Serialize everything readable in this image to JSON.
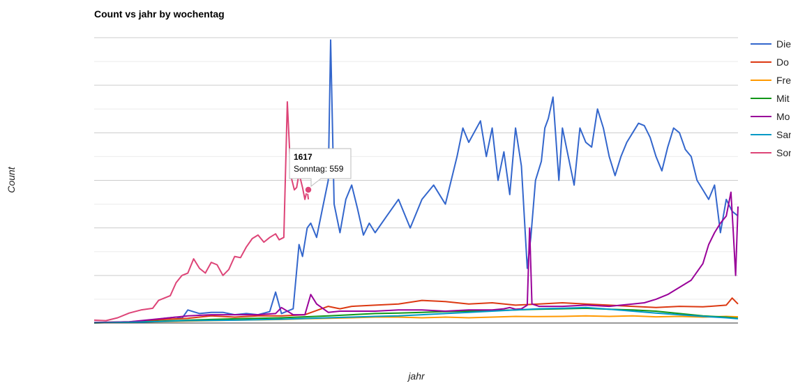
{
  "chart_data": {
    "type": "line",
    "title": "Count vs jahr by wochentag",
    "xlabel": "jahr",
    "ylabel": "Count",
    "ylim": [
      0,
      1200
    ],
    "grid": true,
    "legend_position": "right",
    "tooltip": {
      "x": "1617",
      "series": "Sonntag",
      "value": 559
    },
    "series": [
      {
        "name": "Die",
        "color": "#3366cc",
        "points": [
          [
            0,
            2
          ],
          [
            20,
            3
          ],
          [
            40,
            6
          ],
          [
            60,
            20
          ],
          [
            70,
            25
          ],
          [
            75,
            20
          ],
          [
            80,
            55
          ],
          [
            90,
            40
          ],
          [
            100,
            45
          ],
          [
            110,
            45
          ],
          [
            120,
            35
          ],
          [
            130,
            40
          ],
          [
            140,
            35
          ],
          [
            150,
            48
          ],
          [
            155,
            130
          ],
          [
            160,
            40
          ],
          [
            170,
            60
          ],
          [
            175,
            330
          ],
          [
            178,
            280
          ],
          [
            182,
            400
          ],
          [
            185,
            420
          ],
          [
            190,
            360
          ],
          [
            195,
            480
          ],
          [
            200,
            600
          ],
          [
            202,
            1190
          ],
          [
            205,
            500
          ],
          [
            210,
            380
          ],
          [
            215,
            520
          ],
          [
            220,
            580
          ],
          [
            225,
            480
          ],
          [
            230,
            370
          ],
          [
            235,
            420
          ],
          [
            240,
            380
          ],
          [
            250,
            450
          ],
          [
            260,
            520
          ],
          [
            270,
            400
          ],
          [
            280,
            520
          ],
          [
            290,
            580
          ],
          [
            300,
            500
          ],
          [
            310,
            700
          ],
          [
            315,
            820
          ],
          [
            320,
            760
          ],
          [
            330,
            850
          ],
          [
            335,
            700
          ],
          [
            340,
            820
          ],
          [
            345,
            600
          ],
          [
            350,
            720
          ],
          [
            355,
            540
          ],
          [
            360,
            820
          ],
          [
            365,
            660
          ],
          [
            370,
            230
          ],
          [
            373,
            360
          ],
          [
            377,
            600
          ],
          [
            382,
            680
          ],
          [
            385,
            820
          ],
          [
            388,
            860
          ],
          [
            392,
            950
          ],
          [
            397,
            600
          ],
          [
            400,
            820
          ],
          [
            405,
            700
          ],
          [
            410,
            580
          ],
          [
            415,
            820
          ],
          [
            420,
            760
          ],
          [
            425,
            740
          ],
          [
            430,
            900
          ],
          [
            435,
            820
          ],
          [
            440,
            700
          ],
          [
            445,
            620
          ],
          [
            450,
            700
          ],
          [
            455,
            760
          ],
          [
            460,
            800
          ],
          [
            465,
            840
          ],
          [
            470,
            830
          ],
          [
            475,
            780
          ],
          [
            480,
            700
          ],
          [
            485,
            640
          ],
          [
            490,
            740
          ],
          [
            495,
            820
          ],
          [
            500,
            800
          ],
          [
            505,
            730
          ],
          [
            510,
            700
          ],
          [
            515,
            600
          ],
          [
            520,
            560
          ],
          [
            525,
            520
          ],
          [
            530,
            580
          ],
          [
            535,
            380
          ],
          [
            540,
            520
          ],
          [
            545,
            470
          ],
          [
            550,
            450
          ]
        ]
      },
      {
        "name": "Do",
        "color": "#dc3912",
        "points": [
          [
            0,
            2
          ],
          [
            30,
            5
          ],
          [
            60,
            15
          ],
          [
            80,
            20
          ],
          [
            100,
            30
          ],
          [
            120,
            25
          ],
          [
            140,
            30
          ],
          [
            160,
            30
          ],
          [
            180,
            35
          ],
          [
            200,
            70
          ],
          [
            210,
            60
          ],
          [
            220,
            70
          ],
          [
            240,
            75
          ],
          [
            260,
            80
          ],
          [
            280,
            95
          ],
          [
            300,
            90
          ],
          [
            320,
            80
          ],
          [
            340,
            85
          ],
          [
            360,
            75
          ],
          [
            380,
            80
          ],
          [
            400,
            85
          ],
          [
            420,
            80
          ],
          [
            440,
            75
          ],
          [
            460,
            70
          ],
          [
            480,
            65
          ],
          [
            500,
            70
          ],
          [
            520,
            68
          ],
          [
            540,
            75
          ],
          [
            545,
            105
          ],
          [
            550,
            80
          ]
        ]
      },
      {
        "name": "Fre",
        "color": "#ff9900",
        "points": [
          [
            0,
            1
          ],
          [
            40,
            4
          ],
          [
            80,
            8
          ],
          [
            120,
            12
          ],
          [
            160,
            15
          ],
          [
            180,
            18
          ],
          [
            200,
            20
          ],
          [
            220,
            22
          ],
          [
            240,
            25
          ],
          [
            260,
            25
          ],
          [
            280,
            22
          ],
          [
            300,
            25
          ],
          [
            320,
            22
          ],
          [
            340,
            25
          ],
          [
            360,
            28
          ],
          [
            380,
            27
          ],
          [
            400,
            28
          ],
          [
            420,
            30
          ],
          [
            440,
            28
          ],
          [
            460,
            30
          ],
          [
            480,
            26
          ],
          [
            500,
            28
          ],
          [
            520,
            25
          ],
          [
            540,
            28
          ],
          [
            550,
            26
          ]
        ]
      },
      {
        "name": "Mit",
        "color": "#109618",
        "points": [
          [
            0,
            1
          ],
          [
            40,
            5
          ],
          [
            80,
            12
          ],
          [
            120,
            18
          ],
          [
            160,
            22
          ],
          [
            200,
            30
          ],
          [
            220,
            35
          ],
          [
            240,
            40
          ],
          [
            260,
            42
          ],
          [
            280,
            45
          ],
          [
            300,
            48
          ],
          [
            320,
            50
          ],
          [
            340,
            52
          ],
          [
            360,
            55
          ],
          [
            380,
            58
          ],
          [
            400,
            60
          ],
          [
            420,
            62
          ],
          [
            440,
            58
          ],
          [
            460,
            55
          ],
          [
            480,
            50
          ],
          [
            500,
            40
          ],
          [
            520,
            30
          ],
          [
            540,
            25
          ],
          [
            550,
            20
          ]
        ]
      },
      {
        "name": "Mo",
        "color": "#990099",
        "points": [
          [
            0,
            2
          ],
          [
            30,
            5
          ],
          [
            60,
            20
          ],
          [
            80,
            30
          ],
          [
            100,
            35
          ],
          [
            120,
            35
          ],
          [
            140,
            35
          ],
          [
            155,
            40
          ],
          [
            160,
            65
          ],
          [
            170,
            35
          ],
          [
            180,
            35
          ],
          [
            185,
            120
          ],
          [
            190,
            80
          ],
          [
            200,
            45
          ],
          [
            210,
            50
          ],
          [
            220,
            50
          ],
          [
            240,
            50
          ],
          [
            260,
            55
          ],
          [
            280,
            55
          ],
          [
            300,
            50
          ],
          [
            320,
            55
          ],
          [
            340,
            55
          ],
          [
            350,
            60
          ],
          [
            355,
            65
          ],
          [
            360,
            58
          ],
          [
            365,
            60
          ],
          [
            370,
            75
          ],
          [
            372,
            400
          ],
          [
            374,
            80
          ],
          [
            380,
            70
          ],
          [
            400,
            70
          ],
          [
            420,
            75
          ],
          [
            440,
            70
          ],
          [
            460,
            80
          ],
          [
            470,
            85
          ],
          [
            480,
            100
          ],
          [
            490,
            120
          ],
          [
            500,
            150
          ],
          [
            510,
            180
          ],
          [
            520,
            250
          ],
          [
            525,
            330
          ],
          [
            530,
            380
          ],
          [
            535,
            420
          ],
          [
            540,
            450
          ],
          [
            544,
            550
          ],
          [
            546,
            380
          ],
          [
            548,
            200
          ],
          [
            550,
            490
          ]
        ]
      },
      {
        "name": "Sam",
        "color": "#0099c6",
        "points": [
          [
            0,
            1
          ],
          [
            40,
            4
          ],
          [
            80,
            10
          ],
          [
            120,
            12
          ],
          [
            160,
            16
          ],
          [
            200,
            22
          ],
          [
            220,
            25
          ],
          [
            240,
            28
          ],
          [
            260,
            30
          ],
          [
            280,
            35
          ],
          [
            300,
            40
          ],
          [
            320,
            45
          ],
          [
            340,
            50
          ],
          [
            360,
            55
          ],
          [
            380,
            60
          ],
          [
            400,
            62
          ],
          [
            420,
            65
          ],
          [
            440,
            58
          ],
          [
            460,
            50
          ],
          [
            480,
            42
          ],
          [
            500,
            35
          ],
          [
            520,
            28
          ],
          [
            540,
            22
          ],
          [
            550,
            18
          ]
        ]
      },
      {
        "name": "Son",
        "color": "#dd4477",
        "points": [
          [
            0,
            12
          ],
          [
            10,
            10
          ],
          [
            20,
            22
          ],
          [
            30,
            42
          ],
          [
            40,
            55
          ],
          [
            50,
            62
          ],
          [
            55,
            95
          ],
          [
            60,
            105
          ],
          [
            65,
            115
          ],
          [
            70,
            170
          ],
          [
            75,
            200
          ],
          [
            80,
            210
          ],
          [
            85,
            270
          ],
          [
            90,
            230
          ],
          [
            95,
            210
          ],
          [
            100,
            255
          ],
          [
            105,
            245
          ],
          [
            110,
            200
          ],
          [
            115,
            225
          ],
          [
            120,
            280
          ],
          [
            125,
            275
          ],
          [
            130,
            320
          ],
          [
            135,
            355
          ],
          [
            140,
            370
          ],
          [
            145,
            340
          ],
          [
            150,
            360
          ],
          [
            155,
            375
          ],
          [
            158,
            350
          ],
          [
            162,
            360
          ],
          [
            165,
            930
          ],
          [
            168,
            620
          ],
          [
            171,
            560
          ],
          [
            173,
            570
          ],
          [
            175,
            630
          ],
          [
            178,
            570
          ],
          [
            180,
            520
          ],
          [
            182,
            560
          ],
          [
            183,
            520
          ]
        ]
      }
    ]
  }
}
